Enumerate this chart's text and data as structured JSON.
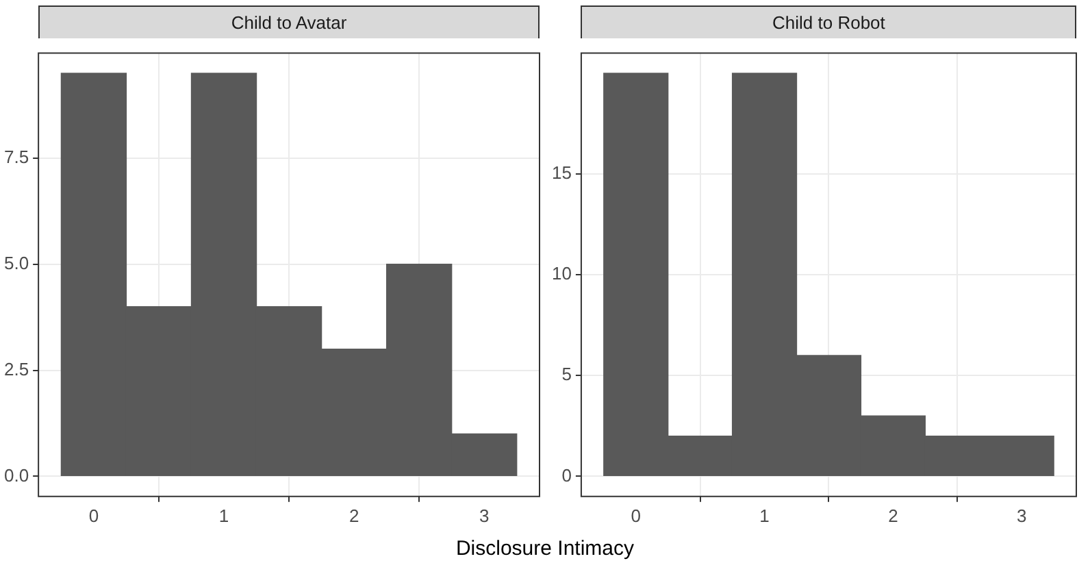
{
  "chart_data": [
    {
      "type": "histogram",
      "title": "Child to Avatar",
      "xlabel": "Disclosure Intimacy",
      "bins": [
        -0.25,
        0.25,
        0.75,
        1.25,
        1.75,
        2.25,
        2.75,
        3.25
      ],
      "values": [
        9.5,
        4,
        9.5,
        4,
        3,
        5,
        1
      ],
      "color": "#595959",
      "xlim": [
        -0.425,
        3.425
      ],
      "xticks": [
        0,
        1,
        2,
        3
      ],
      "ylim": [
        -0.475,
        9.975
      ],
      "yticks": [
        {
          "value": 0,
          "label": "0.0"
        },
        {
          "value": 2.5,
          "label": "2.5"
        },
        {
          "value": 5,
          "label": "5.0"
        },
        {
          "value": 7.5,
          "label": "7.5"
        }
      ],
      "grid": true
    },
    {
      "type": "histogram",
      "title": "Child to Robot",
      "bins": [
        -0.25,
        0.25,
        0.75,
        1.25,
        1.75,
        2.25,
        2.75,
        3.25
      ],
      "values": [
        20,
        2,
        20,
        6,
        3,
        2,
        2
      ],
      "color": "#595959",
      "xlim": [
        -0.425,
        3.425
      ],
      "xticks": [
        0,
        1,
        2,
        3
      ],
      "ylim": [
        -1,
        21
      ],
      "yticks": [
        0,
        5,
        10,
        15
      ],
      "grid": true
    }
  ]
}
